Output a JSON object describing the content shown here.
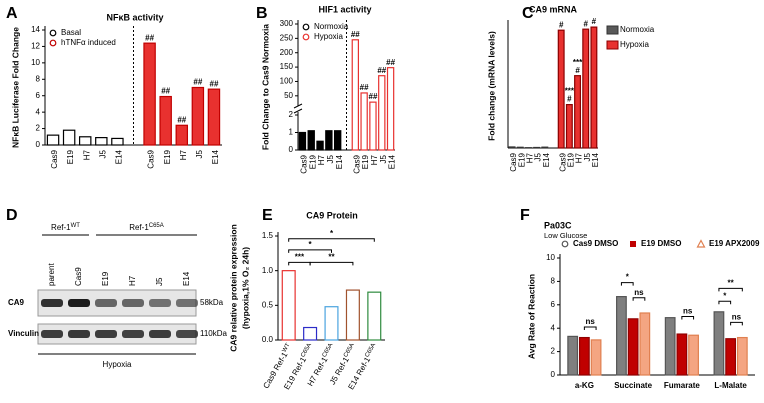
{
  "chart_data": [
    {
      "panel": "A",
      "type": "bar",
      "title": "NFκB activity",
      "y_label": "NFκB Luciferase Fold Change",
      "bar_mode": "blocks",
      "divider": true,
      "legend": "upper left",
      "categories": [
        "Cas9",
        "E19",
        "H7",
        "J5",
        "E14"
      ],
      "series": [
        {
          "name": "Basal",
          "color": "#000000",
          "fill": "#ffffff",
          "values": [
            1.2,
            1.8,
            1.0,
            0.9,
            0.8
          ]
        },
        {
          "name": "hTNFα induced",
          "color": "#c00000",
          "fill": "#e8312f",
          "values": [
            12.4,
            5.9,
            2.4,
            7.0,
            6.8
          ],
          "annotations": [
            [
              "##"
            ],
            [
              "##"
            ],
            [
              "##"
            ],
            [
              "##"
            ],
            [
              "##"
            ]
          ]
        }
      ],
      "ylim": [
        0,
        14
      ],
      "yticks": [
        0,
        2,
        4,
        6,
        8,
        10,
        12,
        14
      ]
    },
    {
      "panel": "B",
      "type": "bar",
      "title": "HIF1 activity",
      "y_label": "Fold Change to Cas9 Normoxia",
      "bar_mode": "blocks",
      "divider": true,
      "legend": "upper left",
      "categories": [
        "Cas9",
        "E19",
        "H7",
        "J5",
        "E14"
      ],
      "series": [
        {
          "name": "Normoxia",
          "color": "#000000",
          "fill": "#000000",
          "values": [
            1.0,
            1.1,
            0.5,
            1.1,
            1.1
          ]
        },
        {
          "name": "Hypoxia",
          "color": "#e8312f",
          "fill": "#ffffff",
          "values": [
            245,
            60,
            28,
            120,
            148
          ],
          "annotations": [
            [
              "##"
            ],
            [
              "##"
            ],
            [
              "##"
            ],
            [
              "##"
            ],
            [
              "##"
            ]
          ]
        }
      ],
      "ylim": [
        0,
        300
      ],
      "ybreak": [
        2,
        25
      ],
      "yticks": [
        0,
        1,
        2,
        50,
        100,
        150,
        200,
        250,
        300
      ]
    },
    {
      "panel": "C",
      "type": "bar",
      "title": "CA9 mRNA",
      "y_label": "Fold change (mRNA levels)",
      "bar_mode": "blocks",
      "divider": false,
      "legend": "right",
      "categories": [
        "Cas9",
        "E19",
        "H7",
        "J5",
        "E14"
      ],
      "series": [
        {
          "name": "Normoxia",
          "color": "#333333",
          "fill": "#595959",
          "values": [
            1.0,
            0.7,
            0.3,
            0.5,
            0.8
          ]
        },
        {
          "name": "Hypoxia",
          "color": "#8b0000",
          "fill": "#e8312f",
          "values": [
            114,
            42,
            70,
            115,
            117
          ],
          "annotations": [
            [
              "#"
            ],
            [
              "***",
              "#"
            ],
            [
              "***",
              "#"
            ],
            [
              "#"
            ],
            [
              "#"
            ]
          ]
        }
      ],
      "ylim": [
        0,
        120
      ]
    },
    {
      "panel": "E",
      "type": "bar",
      "title": "CA9 Protein",
      "y_label": [
        "CA9 relative protein expression",
        "(hypoxia,1% O₂ 24h)"
      ],
      "categories": [
        "Cas9 Ref-1",
        "E19 Ref-1",
        "H7 Ref-1",
        "J5 Ref-1",
        "E14 Ref-1"
      ],
      "category_superscripts": [
        "WT",
        "C65A",
        "C65A",
        "C65A",
        "C65A"
      ],
      "values": [
        1.0,
        0.18,
        0.48,
        0.72,
        0.69
      ],
      "fill": "#ffffff",
      "colors": [
        "#e8312f",
        "#2c2cc8",
        "#4aa3df",
        "#a0522d",
        "#2e8b3e"
      ],
      "annotations": [
        "*",
        "*",
        "***",
        "**"
      ],
      "ylim": [
        0,
        1.5
      ],
      "yticks": [
        {
          "value": 0,
          "label": "0.0"
        },
        0.5,
        {
          "value": 1,
          "label": "1.0"
        },
        1.5
      ]
    },
    {
      "panel": "F",
      "type": "bar",
      "title": "Pa03C",
      "subtitle": "Low Glucose",
      "y_label": "Avg Rate of Reaction",
      "bar_mode": "grouped",
      "legend": "top",
      "categories": [
        "a-KG",
        "Succinate",
        "Fumarate",
        "L-Malate"
      ],
      "series": [
        {
          "name": "Cas9 DMSO",
          "color": "#555555",
          "fill": "#7f7f7f",
          "values": [
            3.3,
            6.7,
            4.9,
            5.4
          ]
        },
        {
          "name": "E19 DMSO",
          "color": "#900000",
          "fill": "#c00000",
          "values": [
            3.2,
            4.8,
            3.5,
            3.1
          ]
        },
        {
          "name": "E19 APX2009",
          "color": "#e08050",
          "fill": "#f4a582",
          "values": [
            3.0,
            5.3,
            3.4,
            3.2
          ]
        }
      ],
      "annotations": [
        "ns",
        "*",
        "ns",
        "ns",
        "**",
        "*",
        "ns"
      ],
      "ylim": [
        0,
        10
      ],
      "yticks": [
        0,
        2,
        4,
        6,
        8,
        10
      ]
    }
  ],
  "blot": {
    "panel": "D",
    "groups": [
      {
        "name": "Ref-1",
        "sup": "WT"
      },
      {
        "name": "Ref-1",
        "sup": "C65A"
      }
    ],
    "lanes": [
      "parent",
      "Cas9",
      "E19",
      "H7",
      "J5",
      "E14"
    ],
    "rows": [
      {
        "name": "CA9",
        "size": "58kDa"
      },
      {
        "name": "Vinculin",
        "size": "110kDa"
      }
    ],
    "condition": "Hypoxia"
  }
}
